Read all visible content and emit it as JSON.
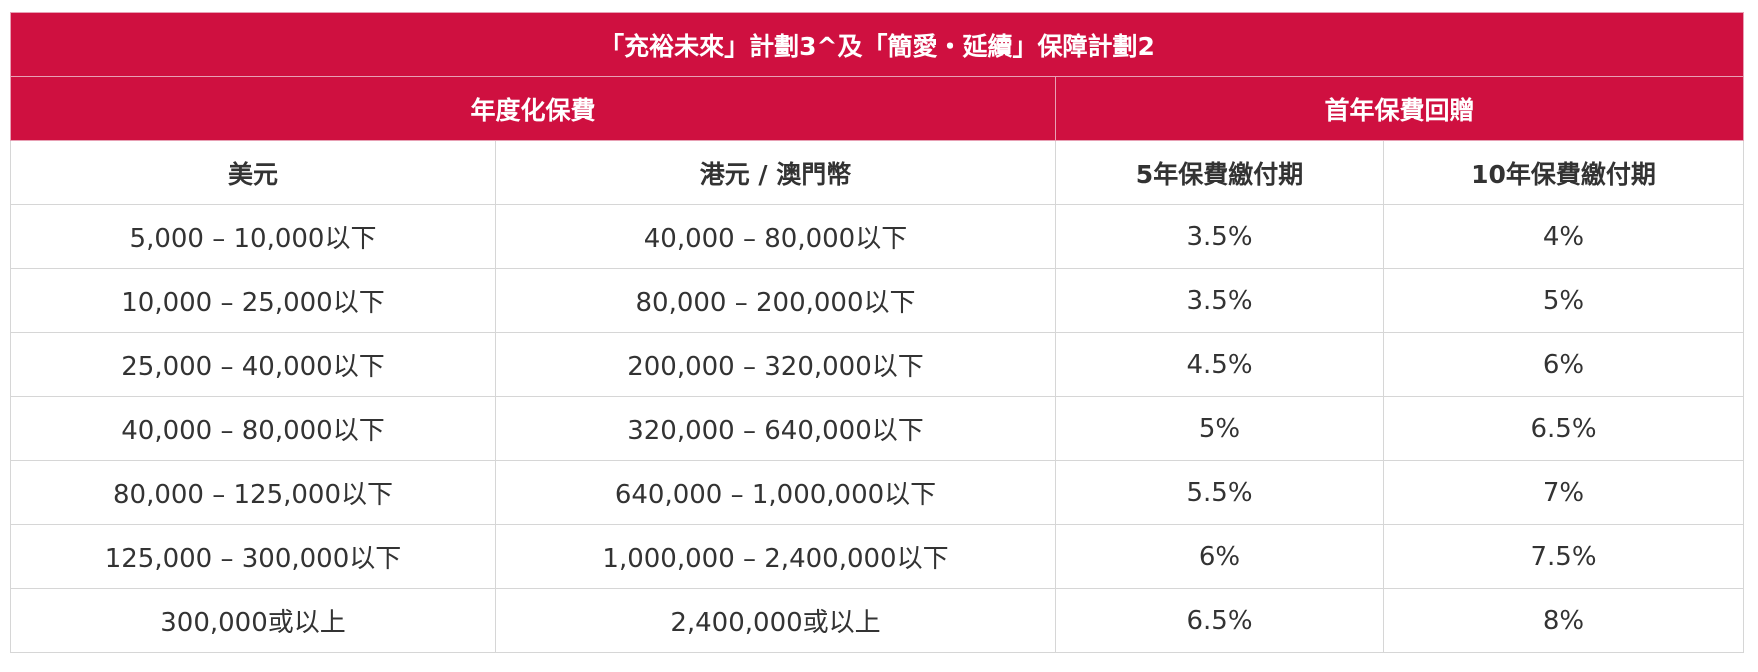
{
  "table": {
    "title": "「充裕未來」計劃3^及「簡愛・延續」保障計劃2",
    "group_headers": [
      "年度化保費",
      "首年保費回贈"
    ],
    "column_headers": [
      "美元",
      "港元 / 澳門幣",
      "5年保費繳付期",
      "10年保費繳付期"
    ],
    "rows": [
      [
        "5,000 – 10,000以下",
        "40,000 – 80,000以下",
        "3.5%",
        "4%"
      ],
      [
        "10,000 – 25,000以下",
        "80,000 – 200,000以下",
        "3.5%",
        "5%"
      ],
      [
        "25,000 – 40,000以下",
        "200,000 – 320,000以下",
        "4.5%",
        "6%"
      ],
      [
        "40,000 – 80,000以下",
        "320,000 – 640,000以下",
        "5%",
        "6.5%"
      ],
      [
        "80,000 – 125,000以下",
        "640,000 – 1,000,000以下",
        "5.5%",
        "7%"
      ],
      [
        "125,000 – 300,000以下",
        "1,000,000 – 2,400,000以下",
        "6%",
        "7.5%"
      ],
      [
        "300,000或以上",
        "2,400,000或以上",
        "6.5%",
        "8%"
      ]
    ]
  },
  "colors": {
    "header_red": "#cf1040",
    "header_text": "#ffffff",
    "body_text": "#333333",
    "border": "#d6d6d6"
  }
}
